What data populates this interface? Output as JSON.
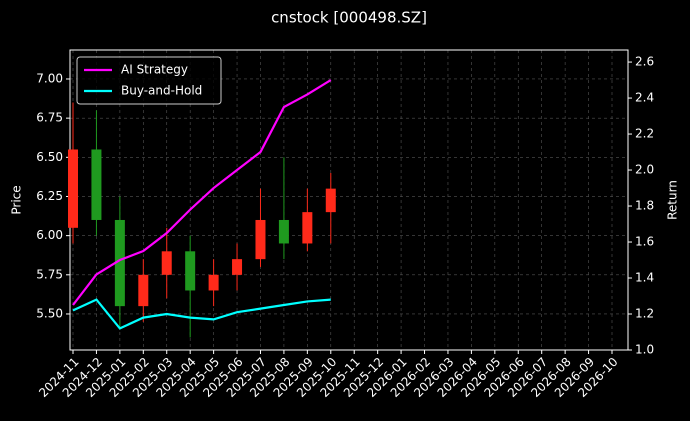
{
  "chart_data": {
    "type": "candlestick",
    "title": "cnstock [000498.SZ]",
    "ylabel": "Price",
    "y2label": "Return",
    "x": [
      "2024-11",
      "2024-12",
      "2025-01",
      "2025-02",
      "2025-03",
      "2025-04",
      "2025-05",
      "2025-06",
      "2025-07",
      "2025-08",
      "2025-09",
      "2025-10"
    ],
    "open": [
      6.05,
      6.55,
      6.1,
      5.55,
      5.75,
      5.9,
      5.65,
      5.75,
      5.85,
      6.1,
      5.95,
      6.15
    ],
    "high": [
      6.85,
      6.8,
      6.25,
      5.85,
      6.05,
      6.0,
      5.85,
      5.95,
      6.3,
      6.5,
      6.3,
      6.4
    ],
    "low": [
      5.95,
      6.0,
      5.4,
      5.45,
      5.6,
      5.35,
      5.55,
      5.65,
      5.8,
      5.85,
      5.9,
      5.95
    ],
    "close": [
      6.55,
      6.1,
      5.55,
      5.75,
      5.9,
      5.65,
      5.75,
      5.85,
      6.1,
      5.95,
      6.15,
      6.3
    ],
    "up_color": "#ff2a1a",
    "down_color": "#1f9a1f",
    "series": [
      {
        "name": "AI Strategy",
        "color": "#ff00ff",
        "axis": "y2",
        "values": [
          1.25,
          1.42,
          1.5,
          1.55,
          1.65,
          1.78,
          1.9,
          2.0,
          2.1,
          2.35,
          2.42,
          2.5
        ]
      },
      {
        "name": "Buy-and-Hold",
        "color": "#00ffff",
        "axis": "y2",
        "values": [
          1.22,
          1.28,
          1.12,
          1.18,
          1.2,
          1.18,
          1.17,
          1.21,
          1.23,
          1.25,
          1.27,
          1.28
        ]
      }
    ],
    "xlim": [
      "2024-11",
      "2026-10"
    ],
    "xticks": [
      "2024-11",
      "2024-12",
      "2025-01",
      "2025-02",
      "2025-03",
      "2025-04",
      "2025-05",
      "2025-06",
      "2025-07",
      "2025-08",
      "2025-09",
      "2025-10",
      "2025-11",
      "2025-12",
      "2026-01",
      "2026-02",
      "2026-03",
      "2026-04",
      "2026-05",
      "2026-06",
      "2026-07",
      "2026-08",
      "2026-09",
      "2026-10"
    ],
    "ylim": [
      5.27,
      7.185
    ],
    "yticks": [
      {
        "value": 5.5,
        "label": "5.50"
      },
      5.75,
      {
        "value": 6.0,
        "label": "6.00"
      },
      6.25,
      {
        "value": 6.5,
        "label": "6.50"
      },
      6.75,
      {
        "value": 7.0,
        "label": "7.00"
      }
    ],
    "y2lim": [
      1.0,
      2.667
    ],
    "y2ticks": [
      {
        "value": 1.0,
        "label": "1.0"
      },
      1.2,
      1.4,
      1.6,
      1.8,
      {
        "value": 2.0,
        "label": "2.0"
      },
      2.2,
      2.4,
      2.6
    ],
    "grid": true,
    "legend": "upper left"
  }
}
